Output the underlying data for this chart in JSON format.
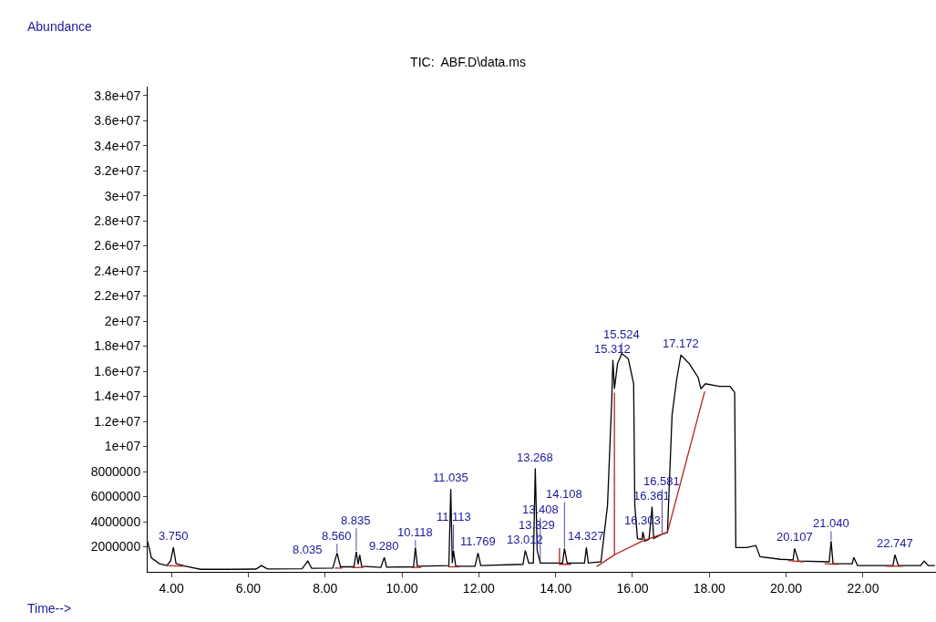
{
  "chart_data": {
    "type": "line",
    "title": "TIC:  ABF.D\\data.ms",
    "xlabel": "Time-->",
    "ylabel": "Abundance",
    "xlim": [
      3.38,
      23.9
    ],
    "ylim": [
      0,
      38700000
    ],
    "xticks": [
      {
        "value": 4,
        "label": "4.00"
      },
      {
        "value": 6,
        "label": "6.00"
      },
      {
        "value": 8,
        "label": "8.00"
      },
      {
        "value": 10,
        "label": "10.00"
      },
      {
        "value": 12,
        "label": "12.00"
      },
      {
        "value": 14,
        "label": "14.00"
      },
      {
        "value": 16,
        "label": "16.00"
      },
      {
        "value": 18,
        "label": "18.00"
      },
      {
        "value": 20,
        "label": "20.00"
      },
      {
        "value": 22,
        "label": "22.00"
      }
    ],
    "yticks": [
      2000000,
      4000000,
      6000000,
      8000000,
      {
        "value": 10000000,
        "label": "1e+07"
      },
      {
        "value": 12000000,
        "label": "1.2e+07"
      },
      {
        "value": 14000000,
        "label": "1.4e+07"
      },
      {
        "value": 16000000,
        "label": "1.6e+07"
      },
      {
        "value": 18000000,
        "label": "1.8e+07"
      },
      {
        "value": 20000000,
        "label": "2e+07"
      },
      {
        "value": 22000000,
        "label": "2.2e+07"
      },
      {
        "value": 24000000,
        "label": "2.4e+07"
      },
      {
        "value": 26000000,
        "label": "2.6e+07"
      },
      {
        "value": 28000000,
        "label": "2.8e+07"
      },
      {
        "value": 30000000,
        "label": "3e+07"
      },
      {
        "value": 32000000,
        "label": "3.2e+07"
      },
      {
        "value": 34000000,
        "label": "3.4e+07"
      },
      {
        "value": 36000000,
        "label": "3.6e+07"
      },
      {
        "value": 38000000,
        "label": "3.8e+07"
      }
    ],
    "marker": "none",
    "line_style": "solid",
    "series": [
      {
        "color": "#000000",
        "x": [
          3.38,
          3.48,
          3.69,
          3.88,
          3.98,
          4.05,
          4.12,
          4.4,
          4.76,
          5.5,
          6.2,
          6.34,
          6.5,
          7.4,
          7.55,
          7.65,
          8.2,
          8.31,
          8.4,
          8.75,
          8.81,
          8.86,
          8.9,
          8.95,
          9.45,
          9.54,
          9.6,
          10.3,
          10.35,
          10.4,
          11.22,
          11.27,
          11.31,
          11.34,
          11.4,
          11.9,
          11.98,
          12.05,
          13.15,
          13.21,
          13.3,
          13.42,
          13.47,
          13.52,
          13.6,
          14.18,
          14.23,
          14.3,
          14.75,
          14.8,
          14.85,
          15.18,
          15.35,
          15.46,
          15.49,
          15.53,
          15.61,
          15.72,
          15.89,
          16.03,
          16.06,
          16.13,
          16.25,
          16.27,
          16.32,
          16.43,
          16.51,
          16.55,
          16.77,
          16.91,
          17.03,
          17.15,
          17.26,
          17.48,
          17.71,
          17.78,
          17.9,
          18.26,
          18.54,
          18.66,
          18.69,
          18.97,
          19.21,
          19.32,
          19.85,
          20.18,
          20.22,
          20.32,
          21.12,
          21.17,
          21.22,
          21.72,
          21.76,
          21.86,
          22.78,
          22.83,
          22.92,
          23.5,
          23.59,
          23.7,
          23.87
        ],
        "values": [
          2400000,
          1100000,
          650000,
          500000,
          900000,
          1950000,
          650000,
          430000,
          200000,
          200000,
          220000,
          500000,
          230000,
          250000,
          860000,
          280000,
          300000,
          1500000,
          400000,
          400000,
          1600000,
          600000,
          1360000,
          450000,
          350000,
          1150000,
          380000,
          400000,
          1940000,
          450000,
          500000,
          6600000,
          700000,
          1700000,
          450000,
          450000,
          1500000,
          500000,
          600000,
          1700000,
          700000,
          700000,
          8250000,
          1700000,
          700000,
          700000,
          1860000,
          700000,
          700000,
          1940000,
          700000,
          800000,
          5300000,
          13700000,
          16900000,
          14600000,
          16600000,
          17400000,
          17000000,
          15000000,
          5300000,
          2650000,
          2600000,
          3200000,
          2450000,
          2600000,
          5200000,
          2650000,
          3000000,
          3150000,
          12500000,
          15350000,
          17300000,
          16600000,
          15500000,
          14600000,
          15000000,
          14800000,
          14800000,
          14300000,
          1940000,
          1940000,
          2100000,
          1200000,
          1000000,
          950000,
          1860000,
          860000,
          800000,
          2450000,
          650000,
          650000,
          1150000,
          500000,
          500000,
          1360000,
          500000,
          500000,
          860000,
          500000,
          500000
        ]
      },
      {
        "color": "#b22222",
        "x": [
          3.88,
          4.35,
          null,
          8.25,
          8.45,
          null,
          8.7,
          9.0,
          null,
          10.25,
          10.5,
          null,
          11.2,
          11.5,
          null,
          14.1,
          14.1,
          14.4,
          null,
          15.07,
          15.53,
          15.53,
          15.53,
          16.25,
          16.91,
          17.88,
          null,
          20.05,
          20.45,
          null,
          21.0,
          21.35,
          null,
          22.6,
          23.05
        ],
        "values": [
          500000,
          450000,
          null,
          300000,
          300000,
          null,
          350000,
          350000,
          null,
          350000,
          350000,
          null,
          400000,
          400000,
          null,
          1900000,
          600000,
          600000,
          null,
          430000,
          1360000,
          14300000,
          1360000,
          2450000,
          3150000,
          14400000,
          null,
          900000,
          800000,
          null,
          650000,
          600000,
          null,
          450000,
          450000
        ]
      }
    ],
    "annotations": [
      {
        "text": "3.750",
        "x": 4.05,
        "y": 1950000
      },
      {
        "text": "8.035",
        "x": 7.55,
        "y": 860000
      },
      {
        "text": "8.560",
        "x": 8.31,
        "y": 1500000
      },
      {
        "text": "8.835",
        "x": 8.81,
        "y": 1600000
      },
      {
        "text": "9.280",
        "x": 9.54,
        "y": 1150000
      },
      {
        "text": "10.118",
        "x": 10.35,
        "y": 1940000
      },
      {
        "text": "11.035",
        "x": 11.27,
        "y": 6600000
      },
      {
        "text": "11.113",
        "x": 11.34,
        "y": 1700000
      },
      {
        "text": "11.769",
        "x": 11.98,
        "y": 1500000
      },
      {
        "text": "13.012",
        "x": 13.21,
        "y": 1700000
      },
      {
        "text": "13.268",
        "x": 13.47,
        "y": 8250000
      },
      {
        "text": "13.329",
        "x": 13.52,
        "y": 1700000
      },
      {
        "text": "13.408",
        "x": 13.6,
        "y": 700000
      },
      {
        "text": "14.108",
        "x": 14.23,
        "y": 1860000
      },
      {
        "text": "14.327",
        "x": 14.8,
        "y": 1940000
      },
      {
        "text": "15.312",
        "x": 15.49,
        "y": 16900000
      },
      {
        "text": "15.524",
        "x": 15.72,
        "y": 17400000
      },
      {
        "text": "16.361",
        "x": 16.51,
        "y": 5200000
      },
      {
        "text": "16.303",
        "x": 16.27,
        "y": 3200000
      },
      {
        "text": "16.581",
        "x": 16.77,
        "y": 3000000
      },
      {
        "text": "17.172",
        "x": 17.26,
        "y": 17300000
      },
      {
        "text": "20.107",
        "x": 20.22,
        "y": 1860000
      },
      {
        "text": "21.040",
        "x": 21.17,
        "y": 2450000
      },
      {
        "text": "22.747",
        "x": 22.83,
        "y": 1360000
      }
    ]
  }
}
